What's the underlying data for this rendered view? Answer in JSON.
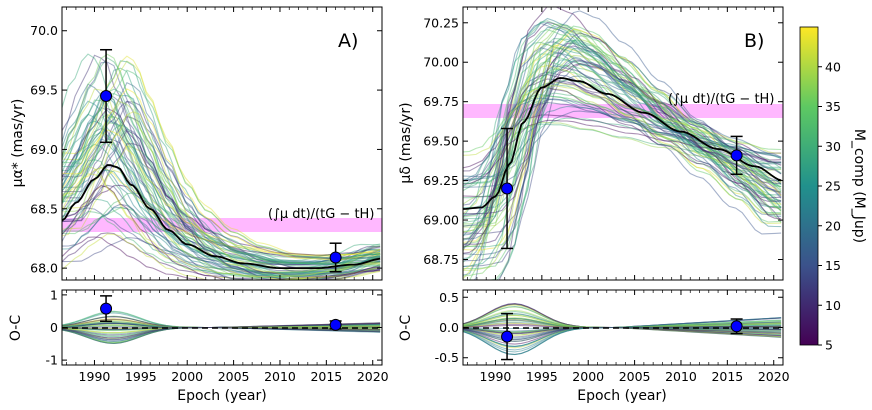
{
  "chart_data": [
    {
      "type": "line",
      "panel": "A",
      "panel_label": "A)",
      "title": "",
      "xlabel": "Epoch (year)",
      "ylabel": "μα* (mas/yr)",
      "xlim": [
        1986.5,
        2021
      ],
      "ylim": [
        67.9,
        70.2
      ],
      "xticks": [
        1990,
        1995,
        2000,
        2005,
        2010,
        2015,
        2020
      ],
      "yticks": [
        68.0,
        68.5,
        69.0,
        69.5,
        70.0
      ],
      "annotation": "(∫μ dt)/(tG − tH)",
      "series": [
        {
          "name": "best fit",
          "color": "#000000",
          "x": [
            1986.5,
            1988,
            1990,
            1991.5,
            1992.5,
            1994,
            1996,
            1998,
            2000,
            2003,
            2006,
            2010,
            2014,
            2018,
            2021
          ],
          "y": [
            68.4,
            68.55,
            68.75,
            68.87,
            68.85,
            68.7,
            68.5,
            68.32,
            68.2,
            68.1,
            68.04,
            68.0,
            68.0,
            68.03,
            68.08
          ]
        }
      ],
      "data_points": [
        {
          "x": 1991.25,
          "y": 69.45,
          "yerr": 0.39
        },
        {
          "x": 2016.0,
          "y": 68.09,
          "yerr": 0.12
        }
      ],
      "reference_value": 68.24
    },
    {
      "type": "line",
      "panel": "B",
      "panel_label": "B)",
      "title": "",
      "xlabel": "Epoch (year)",
      "ylabel": "μδ (mas/yr)",
      "xlim": [
        1986.5,
        2021
      ],
      "ylim": [
        68.62,
        70.35
      ],
      "xticks": [
        1990,
        1995,
        2000,
        2005,
        2010,
        2015,
        2020
      ],
      "yticks": [
        68.75,
        69.0,
        69.25,
        69.5,
        69.75,
        70.0,
        70.25
      ],
      "annotation": "(∫μ dt)/(tG − tH)",
      "series": [
        {
          "name": "best fit",
          "color": "#000000",
          "x": [
            1986.5,
            1988.5,
            1990,
            1991.5,
            1993,
            1995,
            1997,
            1999,
            2002,
            2006,
            2010,
            2014,
            2018,
            2021
          ],
          "y": [
            69.07,
            69.08,
            69.15,
            69.35,
            69.62,
            69.84,
            69.9,
            69.88,
            69.8,
            69.68,
            69.56,
            69.45,
            69.34,
            69.25
          ]
        }
      ],
      "data_points": [
        {
          "x": 1991.25,
          "y": 69.2,
          "yerr": 0.38
        },
        {
          "x": 2016.0,
          "y": 69.41,
          "yerr": 0.12
        }
      ],
      "reference_value": 69.67
    },
    {
      "type": "line",
      "panel": "A residuals",
      "xlabel": "Epoch (year)",
      "ylabel": "O-C",
      "xlim": [
        1986.5,
        2021
      ],
      "ylim": [
        -1.15,
        1.15
      ],
      "xticks": [
        1990,
        1995,
        2000,
        2005,
        2010,
        2015,
        2020
      ],
      "yticks": [
        -1,
        0,
        1
      ],
      "data_points": [
        {
          "x": 1991.25,
          "y": 0.58,
          "yerr": 0.39
        },
        {
          "x": 2016.0,
          "y": 0.08,
          "yerr": 0.12
        }
      ],
      "zero_line": 0
    },
    {
      "type": "line",
      "panel": "B residuals",
      "xlabel": "Epoch (year)",
      "ylabel": "O-C",
      "xlim": [
        1986.5,
        2021
      ],
      "ylim": [
        -0.62,
        0.62
      ],
      "xticks": [
        1990,
        1995,
        2000,
        2005,
        2010,
        2015,
        2020
      ],
      "yticks": [
        -0.5,
        0.0,
        0.5
      ],
      "data_points": [
        {
          "x": 1991.25,
          "y": -0.15,
          "yerr": 0.38
        },
        {
          "x": 2016.0,
          "y": 0.02,
          "yerr": 0.12
        }
      ],
      "zero_line": 0
    }
  ],
  "colorbar": {
    "label": "M_comp (M_Jup)",
    "min": 5,
    "max": 45,
    "ticks": [
      5,
      10,
      15,
      20,
      25,
      30,
      35,
      40
    ],
    "colormap": [
      "#440154",
      "#3b528b",
      "#21918c",
      "#5ec962",
      "#fde725"
    ]
  },
  "colors": {
    "marker_fill": "#0000ff",
    "reference_band": "#ff33ff",
    "best_fit": "#000000"
  }
}
